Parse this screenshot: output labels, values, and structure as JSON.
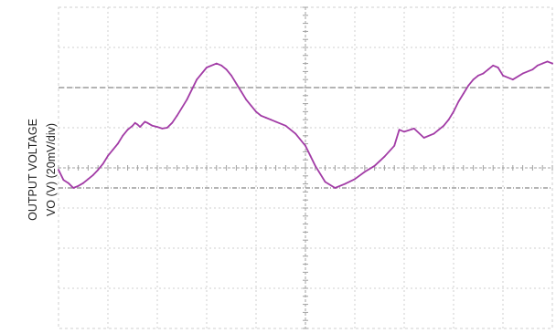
{
  "colors": {
    "background": "#ffffff",
    "grid": "#cfcfcf",
    "center_grid": "#a0a0a0",
    "marker": "#9b9b9b",
    "trace": "#a23ca6"
  },
  "chart_data": {
    "type": "line",
    "title": "",
    "xlabel": "",
    "ylabel_lines": [
      "OUTPUT VOLTAGE",
      "VO (V) (20mV/div)"
    ],
    "grid": true,
    "x_divisions": 10,
    "y_divisions": 8,
    "xlim": [
      0,
      10
    ],
    "ylim": [
      0,
      8
    ],
    "cursor_levels": [
      6.0,
      3.5
    ],
    "series": [
      {
        "color": "#a23ca6",
        "x": [
          0.0,
          0.1,
          0.2,
          0.3,
          0.4,
          0.5,
          0.6,
          0.7,
          0.8,
          0.9,
          1.0,
          1.1,
          1.2,
          1.3,
          1.4,
          1.5,
          1.55,
          1.6,
          1.65,
          1.75,
          1.8,
          1.9,
          2.0,
          2.1,
          2.2,
          2.3,
          2.4,
          2.6,
          2.8,
          3.0,
          3.2,
          3.3,
          3.4,
          3.5,
          3.6,
          3.7,
          3.8,
          3.9,
          4.0,
          4.1,
          4.2,
          4.3,
          4.4,
          4.6,
          4.8,
          5.0,
          5.1,
          5.2,
          5.4,
          5.6,
          5.8,
          6.0,
          6.2,
          6.4,
          6.6,
          6.8,
          6.9,
          7.0,
          7.2,
          7.4,
          7.6,
          7.8,
          7.9,
          8.0,
          8.1,
          8.2,
          8.3,
          8.4,
          8.5,
          8.6,
          8.7,
          8.8,
          8.9,
          9.0,
          9.2,
          9.4,
          9.6,
          9.7,
          9.8,
          9.9,
          10.0
        ],
        "values": [
          3.95,
          3.7,
          3.62,
          3.5,
          3.55,
          3.62,
          3.72,
          3.82,
          3.95,
          4.1,
          4.3,
          4.45,
          4.6,
          4.8,
          4.95,
          5.05,
          5.12,
          5.08,
          5.02,
          5.15,
          5.12,
          5.05,
          5.02,
          4.98,
          5.0,
          5.12,
          5.3,
          5.7,
          6.2,
          6.5,
          6.6,
          6.55,
          6.45,
          6.3,
          6.1,
          5.9,
          5.7,
          5.55,
          5.4,
          5.3,
          5.25,
          5.2,
          5.15,
          5.05,
          4.85,
          4.55,
          4.3,
          4.05,
          3.65,
          3.5,
          3.6,
          3.72,
          3.9,
          4.05,
          4.28,
          4.55,
          4.95,
          4.9,
          4.98,
          4.75,
          4.85,
          5.05,
          5.2,
          5.4,
          5.65,
          5.85,
          6.05,
          6.2,
          6.3,
          6.35,
          6.45,
          6.55,
          6.5,
          6.3,
          6.2,
          6.35,
          6.45,
          6.55,
          6.6,
          6.65,
          6.6
        ]
      }
    ]
  }
}
